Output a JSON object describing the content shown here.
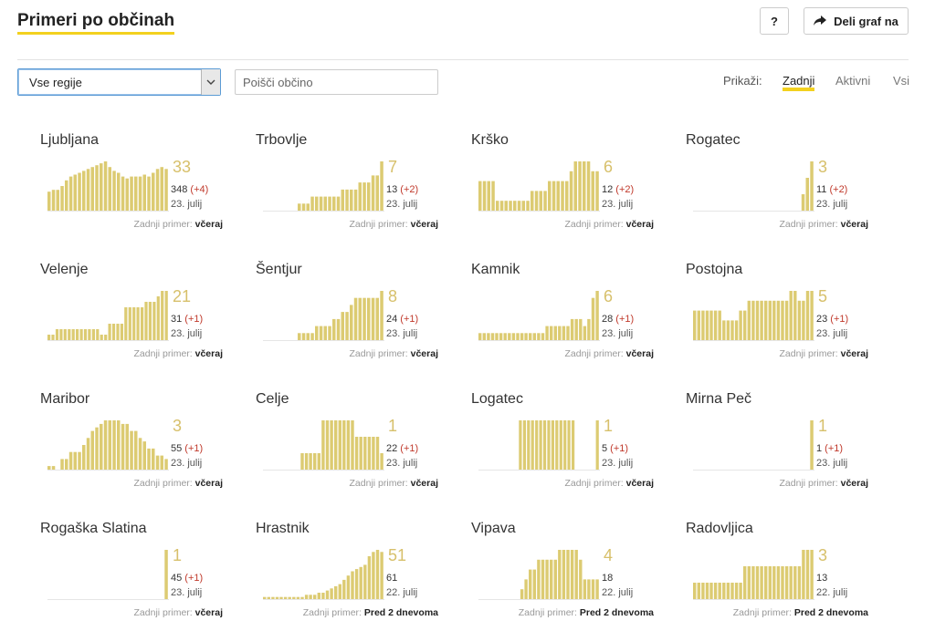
{
  "header": {
    "title": "Primeri po občinah",
    "help_label": "?",
    "share_label": "Deli graf na"
  },
  "filters": {
    "region_value": "Vse regije",
    "search_placeholder": "Poišči občino",
    "show_label": "Prikaži:",
    "options": [
      "Zadnji",
      "Aktivni",
      "Vsi"
    ],
    "selected": "Zadnji"
  },
  "colors": {
    "bar": "#dccb72",
    "accent": "#f3d11f",
    "delta": "#c0392b"
  },
  "last_case_label": "Zadnji primer:",
  "municipalities": [
    {
      "name": "Ljubljana",
      "big": "33",
      "total": "348",
      "delta": "(+4)",
      "date": "23. julij",
      "last": "včeraj",
      "bars": [
        10,
        11,
        11,
        13,
        16,
        18,
        19,
        20,
        21,
        22,
        23,
        24,
        25,
        26,
        23,
        21,
        20,
        18,
        17,
        18,
        18,
        18,
        19,
        18,
        20,
        22,
        23,
        22
      ]
    },
    {
      "name": "Trbovlje",
      "big": "7",
      "total": "13",
      "delta": "(+2)",
      "date": "23. julij",
      "last": "včeraj",
      "bars": [
        0,
        0,
        0,
        0,
        0,
        0,
        0,
        0,
        1,
        1,
        1,
        2,
        2,
        2,
        2,
        2,
        2,
        2,
        3,
        3,
        3,
        3,
        4,
        4,
        4,
        5,
        5,
        7
      ]
    },
    {
      "name": "Krško",
      "big": "6",
      "total": "12",
      "delta": "(+2)",
      "date": "23. julij",
      "last": "včeraj",
      "bars": [
        3,
        3,
        3,
        3,
        1,
        1,
        1,
        1,
        1,
        1,
        1,
        1,
        2,
        2,
        2,
        2,
        3,
        3,
        3,
        3,
        3,
        4,
        5,
        5,
        5,
        5,
        4,
        4
      ]
    },
    {
      "name": "Rogatec",
      "big": "3",
      "total": "11",
      "delta": "(+2)",
      "date": "23. julij",
      "last": "včeraj",
      "bars": [
        0,
        0,
        0,
        0,
        0,
        0,
        0,
        0,
        0,
        0,
        0,
        0,
        0,
        0,
        0,
        0,
        0,
        0,
        0,
        0,
        0,
        0,
        0,
        0,
        0,
        1,
        2,
        3
      ]
    },
    {
      "name": "Velenje",
      "big": "21",
      "total": "31",
      "delta": "(+1)",
      "date": "23. julij",
      "last": "včeraj",
      "bars": [
        1,
        1,
        2,
        2,
        2,
        2,
        2,
        2,
        2,
        2,
        2,
        2,
        2,
        1,
        1,
        3,
        3,
        3,
        3,
        6,
        6,
        6,
        6,
        6,
        7,
        7,
        7,
        8,
        9,
        9
      ]
    },
    {
      "name": "Šentjur",
      "big": "8",
      "total": "24",
      "delta": "(+1)",
      "date": "23. julij",
      "last": "včeraj",
      "bars": [
        0,
        0,
        0,
        0,
        0,
        0,
        0,
        0,
        1,
        1,
        1,
        1,
        2,
        2,
        2,
        2,
        3,
        3,
        4,
        4,
        5,
        6,
        6,
        6,
        6,
        6,
        6,
        7
      ]
    },
    {
      "name": "Kamnik",
      "big": "6",
      "total": "28",
      "delta": "(+1)",
      "date": "23. julij",
      "last": "včeraj",
      "bars": [
        1,
        1,
        1,
        1,
        1,
        1,
        1,
        1,
        1,
        1,
        1,
        1,
        1,
        1,
        1,
        1,
        2,
        2,
        2,
        2,
        2,
        2,
        3,
        3,
        3,
        2,
        3,
        6,
        7
      ]
    },
    {
      "name": "Postojna",
      "big": "5",
      "total": "23",
      "delta": "(+1)",
      "date": "23. julij",
      "last": "včeraj",
      "bars": [
        3,
        3,
        3,
        3,
        3,
        3,
        3,
        2,
        2,
        2,
        2,
        3,
        3,
        4,
        4,
        4,
        4,
        4,
        4,
        4,
        4,
        4,
        4,
        5,
        5,
        4,
        4,
        5,
        5
      ]
    },
    {
      "name": "Maribor",
      "big": "3",
      "total": "55",
      "delta": "(+1)",
      "date": "23. julij",
      "last": "včeraj",
      "bars": [
        1,
        1,
        0,
        3,
        3,
        5,
        5,
        5,
        7,
        9,
        11,
        12,
        13,
        14,
        14,
        14,
        14,
        13,
        13,
        11,
        11,
        9,
        8,
        6,
        6,
        4,
        4,
        3
      ]
    },
    {
      "name": "Celje",
      "big": "1",
      "total": "22",
      "delta": "(+1)",
      "date": "23. julij",
      "last": "včeraj",
      "bars": [
        0,
        0,
        0,
        0,
        0,
        0,
        0,
        0,
        0,
        1,
        1,
        1,
        1,
        1,
        3,
        3,
        3,
        3,
        3,
        3,
        3,
        3,
        2,
        2,
        2,
        2,
        2,
        2,
        1
      ]
    },
    {
      "name": "Logatec",
      "big": "1",
      "total": "5",
      "delta": "(+1)",
      "date": "23. julij",
      "last": "včeraj",
      "bars": [
        0,
        0,
        0,
        0,
        0,
        0,
        0,
        0,
        0,
        0,
        1,
        1,
        1,
        1,
        1,
        1,
        1,
        1,
        1,
        1,
        1,
        1,
        1,
        1,
        0,
        0,
        0,
        0,
        0,
        1
      ]
    },
    {
      "name": "Mirna Peč",
      "big": "1",
      "total": "1",
      "delta": "(+1)",
      "date": "23. julij",
      "last": "včeraj",
      "bars": [
        0,
        0,
        0,
        0,
        0,
        0,
        0,
        0,
        0,
        0,
        0,
        0,
        0,
        0,
        0,
        0,
        0,
        0,
        0,
        0,
        0,
        0,
        0,
        0,
        0,
        0,
        0,
        1
      ]
    },
    {
      "name": "Rogaška Slatina",
      "big": "1",
      "total": "45",
      "delta": "(+1)",
      "date": "23. julij",
      "last": "včeraj",
      "bars": [
        0,
        0,
        0,
        0,
        0,
        0,
        0,
        0,
        0,
        0,
        0,
        0,
        0,
        0,
        0,
        0,
        0,
        0,
        0,
        0,
        0,
        0,
        0,
        0,
        0,
        0,
        0,
        1
      ]
    },
    {
      "name": "Hrastnik",
      "big": "51",
      "total": "61",
      "delta": "",
      "date": "22. julij",
      "last": "Pred 2 dnevoma",
      "bars": [
        1,
        1,
        1,
        1,
        1,
        1,
        1,
        1,
        1,
        1,
        2,
        2,
        2,
        3,
        3,
        4,
        5,
        6,
        7,
        9,
        11,
        13,
        14,
        15,
        16,
        20,
        22,
        23,
        22
      ]
    },
    {
      "name": "Vipava",
      "big": "4",
      "total": "18",
      "delta": "",
      "date": "22. julij",
      "last": "Pred 2 dnevoma",
      "bars": [
        0,
        0,
        0,
        0,
        0,
        0,
        0,
        0,
        0,
        0,
        1,
        2,
        3,
        3,
        4,
        4,
        4,
        4,
        4,
        5,
        5,
        5,
        5,
        5,
        4,
        2,
        2,
        2,
        2
      ]
    },
    {
      "name": "Radovljica",
      "big": "3",
      "total": "13",
      "delta": "",
      "date": "22. julij",
      "last": "Pred 2 dnevoma",
      "bars": [
        1,
        1,
        1,
        1,
        1,
        1,
        1,
        1,
        1,
        1,
        1,
        1,
        2,
        2,
        2,
        2,
        2,
        2,
        2,
        2,
        2,
        2,
        2,
        2,
        2,
        2,
        3,
        3,
        3
      ]
    }
  ]
}
